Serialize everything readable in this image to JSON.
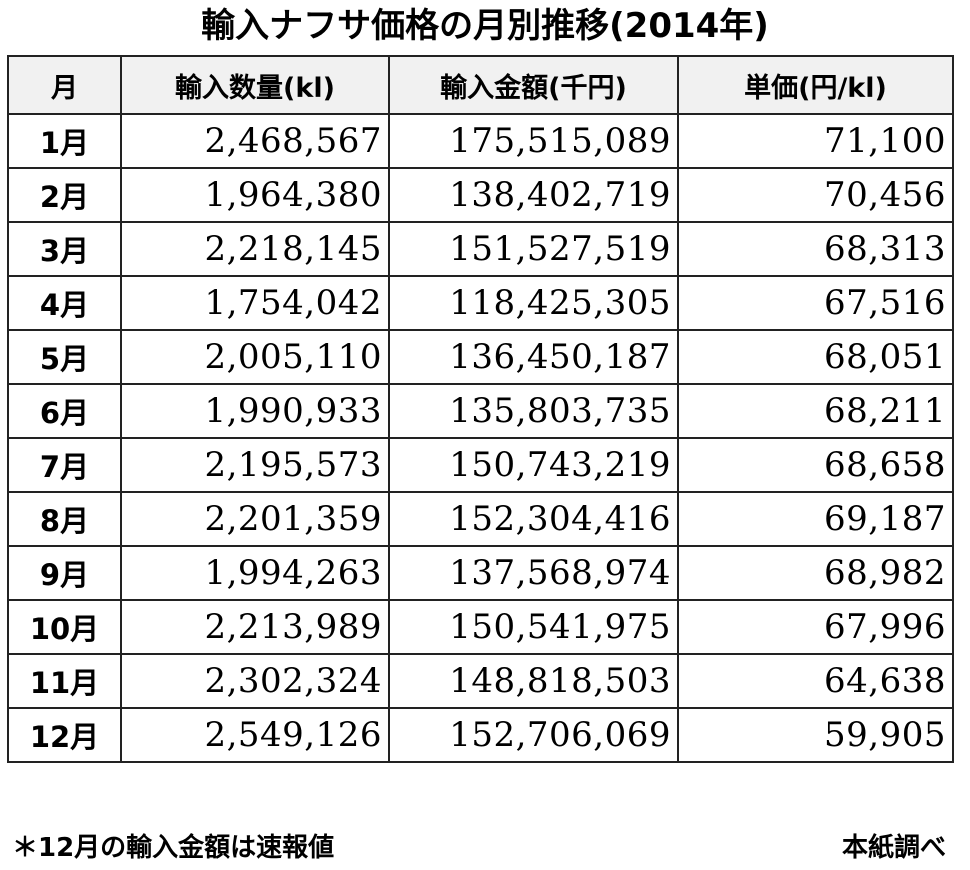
{
  "title": "輸入ナフサ価格の月別推移(2014年)",
  "table": {
    "headers": [
      "月",
      "輸入数量(kl)",
      "輸入金額(千円)",
      "単価(円/kl)"
    ],
    "rows": [
      [
        "1月",
        "2,468,567",
        "175,515,089",
        "71,100"
      ],
      [
        "2月",
        "1,964,380",
        "138,402,719",
        "70,456"
      ],
      [
        "3月",
        "2,218,145",
        "151,527,519",
        "68,313"
      ],
      [
        "4月",
        "1,754,042",
        "118,425,305",
        "67,516"
      ],
      [
        "5月",
        "2,005,110",
        "136,450,187",
        "68,051"
      ],
      [
        "6月",
        "1,990,933",
        "135,803,735",
        "68,211"
      ],
      [
        "7月",
        "2,195,573",
        "150,743,219",
        "68,658"
      ],
      [
        "8月",
        "2,201,359",
        "152,304,416",
        "69,187"
      ],
      [
        "9月",
        "1,994,263",
        "137,568,974",
        "68,982"
      ],
      [
        "10月",
        "2,213,989",
        "150,541,975",
        "67,996"
      ],
      [
        "11月",
        "2,302,324",
        "148,818,503",
        "64,638"
      ],
      [
        "12月",
        "2,549,126",
        "152,706,069",
        "59,905"
      ]
    ]
  },
  "footer": {
    "note": "＊12月の輸入金額は速報値",
    "source": "本紙調べ"
  }
}
